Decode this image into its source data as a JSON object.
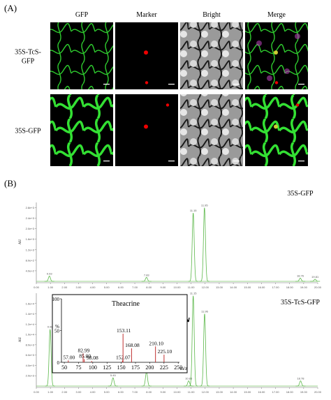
{
  "panel_a": {
    "label": "(A)",
    "columns": [
      "GFP",
      "Marker",
      "Bright",
      "Merge"
    ],
    "rows": [
      [
        "35S-TcS-",
        "GFP"
      ],
      [
        "35S-GFP"
      ]
    ]
  },
  "panel_b": {
    "label": "(B)",
    "chromatograms": [
      {
        "name": "35S-GFP",
        "y_label": "AU",
        "xlim": [
          0,
          20
        ],
        "xticks": [
          {
            "value": 0,
            "label": "0.00"
          },
          {
            "value": 1,
            "label": "1.00"
          },
          {
            "value": 2,
            "label": "2.00"
          },
          {
            "value": 3,
            "label": "3.00"
          },
          {
            "value": 4,
            "label": "4.00"
          },
          {
            "value": 5,
            "label": "5.00"
          },
          {
            "value": 6,
            "label": "6.00"
          },
          {
            "value": 7,
            "label": "7.00"
          },
          {
            "value": 8,
            "label": "8.00"
          },
          {
            "value": 9,
            "label": "9.00"
          },
          {
            "value": 10,
            "label": "10.00"
          },
          {
            "value": 11,
            "label": "11.00"
          },
          {
            "value": 12,
            "label": "12.00"
          },
          {
            "value": 13,
            "label": "13.00"
          },
          {
            "value": 14,
            "label": "14.00"
          },
          {
            "value": 15,
            "label": "15.00"
          },
          {
            "value": 16,
            "label": "16.00"
          },
          {
            "value": 17,
            "label": "17.00"
          },
          {
            "value": 18,
            "label": "18.00"
          },
          {
            "value": 19,
            "label": "19.00"
          },
          {
            "value": 20,
            "label": "20.00"
          }
        ],
        "ylim": [
          0,
          3000
        ],
        "yticks": [
          {
            "value": 400,
            "label": "4.0e+2"
          },
          {
            "value": 800,
            "label": "8.0e+2"
          },
          {
            "value": 1200,
            "label": "1.2e+3"
          },
          {
            "value": 1600,
            "label": "1.6e+3"
          },
          {
            "value": 2000,
            "label": "2.0e+3"
          },
          {
            "value": 2400,
            "label": "2.4e+3"
          },
          {
            "value": 2800,
            "label": "2.8e+3"
          }
        ],
        "peaks": {
          "x": [
            0.93,
            7.83,
            11.15,
            11.95,
            18.76,
            19.81
          ],
          "values": [
            200,
            150,
            2600,
            2800,
            120,
            80
          ]
        }
      },
      {
        "name": "35S-TcS-GFP",
        "y_label": "AU",
        "xlim": [
          0,
          20
        ],
        "xticks": [
          {
            "value": 0,
            "label": "0.00"
          },
          {
            "value": 1,
            "label": "1.00"
          },
          {
            "value": 2,
            "label": "2.00"
          },
          {
            "value": 3,
            "label": "3.00"
          },
          {
            "value": 4,
            "label": "4.00"
          },
          {
            "value": 5,
            "label": "5.00"
          },
          {
            "value": 6,
            "label": "6.00"
          },
          {
            "value": 7,
            "label": "7.00"
          },
          {
            "value": 8,
            "label": "8.00"
          },
          {
            "value": 9,
            "label": "9.00"
          },
          {
            "value": 10,
            "label": "10.00"
          },
          {
            "value": 11,
            "label": "11.00"
          },
          {
            "value": 12,
            "label": "12.00"
          },
          {
            "value": 13,
            "label": "13.00"
          },
          {
            "value": 14,
            "label": "14.00"
          },
          {
            "value": 15,
            "label": "15.00"
          },
          {
            "value": 16,
            "label": "16.00"
          },
          {
            "value": 17,
            "label": "17.00"
          },
          {
            "value": 18,
            "label": "18.00"
          },
          {
            "value": 19,
            "label": "19.00"
          },
          {
            "value": 20,
            "label": "20.00"
          }
        ],
        "ylim": [
          0,
          18000
        ],
        "yticks": [
          {
            "value": 2000,
            "label": "2.0e+3"
          },
          {
            "value": 4000,
            "label": "4.0e+3"
          },
          {
            "value": 6000,
            "label": "6.0e+3"
          },
          {
            "value": 8000,
            "label": "8.0e+3"
          },
          {
            "value": 10000,
            "label": "1.0e+4"
          },
          {
            "value": 12000,
            "label": "1.2e+4"
          },
          {
            "value": 14000,
            "label": "1.4e+4"
          },
          {
            "value": 16000,
            "label": "1.6e+4"
          }
        ],
        "peaks": {
          "x": [
            0.98,
            5.45,
            7.83,
            10.83,
            11.15,
            11.96,
            18.78
          ],
          "values": [
            11000,
            1600,
            2800,
            1000,
            17500,
            14000,
            1000
          ]
        }
      }
    ],
    "inset": {
      "title": "Theacrine",
      "y_label": "%",
      "x_label": "m/z",
      "xlim": [
        45,
        262
      ],
      "xticks": [
        50,
        75,
        100,
        125,
        150,
        175,
        200,
        225,
        250
      ],
      "ylim": [
        0,
        100
      ],
      "yticks": [
        0,
        50,
        100
      ],
      "x": [
        {
          "value": 57,
          "label": "57.00"
        },
        {
          "value": 82.99,
          "label": "82.99"
        },
        {
          "value": 85,
          "label": "85.00"
        },
        {
          "value": 98.08,
          "label": "98.08"
        },
        {
          "value": 152.07,
          "label": "152.07"
        },
        {
          "value": 153.11,
          "label": "153.11"
        },
        {
          "value": 168.08,
          "label": "168.08"
        },
        {
          "value": 210.1,
          "label": "210.10"
        },
        {
          "value": 225.1,
          "label": "225.10"
        }
      ],
      "values": [
        3,
        14,
        5,
        2,
        3,
        45,
        22,
        25,
        12
      ]
    }
  }
}
